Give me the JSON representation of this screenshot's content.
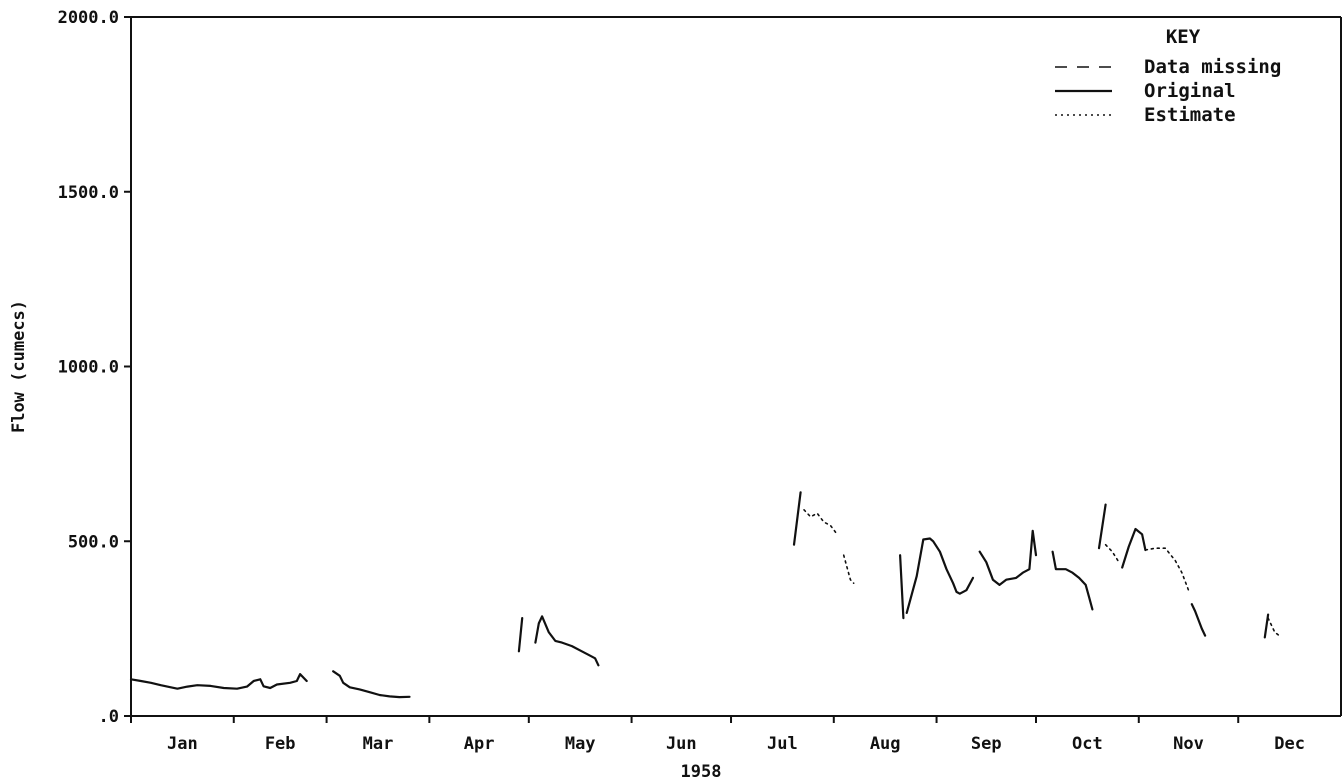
{
  "chart_data": {
    "type": "line",
    "title": "",
    "xlabel": "1958",
    "ylabel": "Flow (cumecs)",
    "ylim": [
      0,
      2000
    ],
    "yticks": [
      0,
      500,
      1000,
      1500,
      2000
    ],
    "ytick_labels": [
      ".0",
      "500.0",
      "1000.0",
      "1500.0",
      "2000.0"
    ],
    "xlim": [
      0,
      365
    ],
    "months": [
      "Jan",
      "Feb",
      "Mar",
      "Apr",
      "May",
      "Jun",
      "Jul",
      "Aug",
      "Sep",
      "Oct",
      "Nov",
      "Dec"
    ],
    "month_starts": [
      0,
      31,
      59,
      90,
      120,
      151,
      181,
      212,
      243,
      273,
      304,
      334
    ],
    "grid": false,
    "legend": {
      "title": "KEY",
      "position": "top-right",
      "entries": [
        {
          "label": "Data missing",
          "style": "dashed"
        },
        {
          "label": "Original",
          "style": "solid"
        },
        {
          "label": "Estimate",
          "style": "dotted"
        }
      ]
    },
    "series": [
      {
        "name": "Original",
        "style": "solid",
        "segments": [
          [
            [
              0,
              105
            ],
            [
              3,
              100
            ],
            [
              6,
              95
            ],
            [
              9,
              88
            ],
            [
              12,
              82
            ],
            [
              14,
              78
            ],
            [
              17,
              84
            ],
            [
              20,
              88
            ],
            [
              24,
              86
            ],
            [
              28,
              80
            ],
            [
              32,
              78
            ],
            [
              35,
              84
            ],
            [
              37,
              100
            ],
            [
              39,
              105
            ],
            [
              40,
              85
            ],
            [
              42,
              80
            ],
            [
              44,
              90
            ],
            [
              48,
              95
            ],
            [
              50,
              100
            ],
            [
              51,
              120
            ],
            [
              53,
              100
            ]
          ],
          [
            [
              61,
              128
            ],
            [
              63,
              115
            ],
            [
              64,
              95
            ],
            [
              66,
              82
            ],
            [
              69,
              76
            ],
            [
              72,
              68
            ],
            [
              75,
              60
            ],
            [
              78,
              56
            ],
            [
              81,
              54
            ],
            [
              84,
              55
            ]
          ],
          [
            [
              117,
              185
            ],
            [
              118,
              280
            ]
          ],
          [
            [
              122,
              210
            ],
            [
              123,
              265
            ],
            [
              124,
              285
            ],
            [
              126,
              240
            ],
            [
              128,
              215
            ],
            [
              130,
              210
            ],
            [
              133,
              200
            ],
            [
              136,
              185
            ],
            [
              138,
              175
            ],
            [
              140,
              165
            ],
            [
              141,
              145
            ]
          ],
          [
            [
              200,
              490
            ],
            [
              202,
              640
            ]
          ],
          [
            [
              232,
              460
            ],
            [
              233,
              280
            ]
          ],
          [
            [
              234,
              295
            ],
            [
              237,
              400
            ],
            [
              239,
              505
            ],
            [
              241,
              508
            ],
            [
              242,
              500
            ],
            [
              244,
              470
            ],
            [
              246,
              420
            ],
            [
              248,
              380
            ],
            [
              249,
              355
            ],
            [
              250,
              350
            ],
            [
              252,
              360
            ],
            [
              254,
              395
            ]
          ],
          [
            [
              256,
              470
            ],
            [
              258,
              440
            ],
            [
              260,
              390
            ],
            [
              262,
              375
            ],
            [
              264,
              390
            ],
            [
              267,
              395
            ],
            [
              269,
              410
            ],
            [
              271,
              420
            ],
            [
              272,
              530
            ],
            [
              273,
              460
            ]
          ],
          [
            [
              278,
              470
            ],
            [
              279,
              420
            ],
            [
              282,
              420
            ],
            [
              284,
              410
            ],
            [
              286,
              395
            ],
            [
              288,
              375
            ],
            [
              289,
              340
            ],
            [
              290,
              305
            ]
          ],
          [
            [
              292,
              480
            ],
            [
              294,
              605
            ]
          ],
          [
            [
              299,
              425
            ],
            [
              301,
              485
            ],
            [
              303,
              535
            ],
            [
              305,
              520
            ],
            [
              306,
              475
            ]
          ],
          [
            [
              320,
              320
            ],
            [
              321,
              300
            ],
            [
              323,
              250
            ],
            [
              324,
              230
            ]
          ],
          [
            [
              342,
              225
            ],
            [
              343,
              290
            ]
          ]
        ]
      },
      {
        "name": "Estimate",
        "style": "dotted",
        "segments": [
          [
            [
              203,
              590
            ],
            [
              205,
              570
            ],
            [
              207,
              580
            ],
            [
              209,
              555
            ],
            [
              211,
              545
            ],
            [
              213,
              520
            ]
          ],
          [
            [
              215,
              460
            ],
            [
              217,
              390
            ],
            [
              218,
              380
            ]
          ],
          [
            [
              294,
              490
            ],
            [
              296,
              470
            ],
            [
              298,
              440
            ]
          ],
          [
            [
              306,
              475
            ],
            [
              309,
              480
            ],
            [
              312,
              480
            ],
            [
              315,
              445
            ],
            [
              317,
              410
            ],
            [
              319,
              360
            ]
          ],
          [
            [
              343,
              280
            ],
            [
              345,
              240
            ],
            [
              347,
              225
            ]
          ]
        ]
      }
    ]
  }
}
